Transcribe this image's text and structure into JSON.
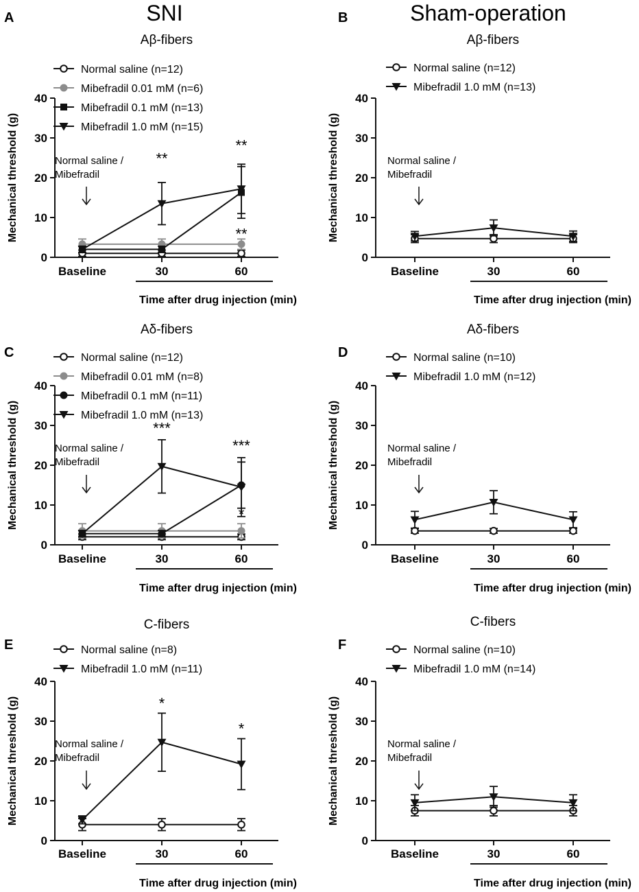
{
  "headers": {
    "left": "SNI",
    "right": "Sham-operation"
  },
  "shared": {
    "ylabel": "Mechanical threshold (g)",
    "xlabel": "Time after drug injection (min)",
    "annotation": "Normal saline /\nMibefradil",
    "ylim": [
      0,
      40
    ],
    "yticks": [
      0,
      10,
      20,
      30,
      40
    ]
  },
  "colors": {
    "black": "#111111",
    "grey": "#8c8c8c"
  },
  "chart_data": [
    {
      "panel": "A",
      "type": "line",
      "title": "Aβ-fibers",
      "categories": [
        "Baseline",
        "30",
        "60"
      ],
      "series": [
        {
          "name": "Normal saline (n=12)",
          "marker": "open-circle",
          "color": "#111111",
          "values": [
            1.0,
            1.0,
            1.0
          ],
          "errors": [
            0.8,
            0.8,
            0.8
          ]
        },
        {
          "name": "Mibefradil 0.01 mM (n=6)",
          "marker": "grey-circle",
          "color": "#8c8c8c",
          "values": [
            3.3,
            3.3,
            3.3
          ],
          "errors": [
            1.3,
            1.3,
            1.3
          ]
        },
        {
          "name": "Mibefradil 0.1 mM (n=13)",
          "marker": "square",
          "color": "#111111",
          "values": [
            2.0,
            2.0,
            16.3
          ],
          "errors": [
            0.8,
            0.8,
            6.5
          ]
        },
        {
          "name": "Mibefradil 1.0 mM (n=15)",
          "marker": "triangle-down",
          "color": "#111111",
          "values": [
            2.0,
            13.5,
            17.2
          ],
          "errors": [
            0.8,
            5.3,
            6.2
          ]
        }
      ],
      "significance": [
        {
          "x": "30",
          "y": 23.5,
          "text": "**"
        },
        {
          "x": "60",
          "y": 26.8,
          "text": "**"
        },
        {
          "x": "60",
          "y": 4.6,
          "text": "**"
        }
      ]
    },
    {
      "panel": "B",
      "type": "line",
      "title": "Aβ-fibers",
      "categories": [
        "Baseline",
        "30",
        "60"
      ],
      "series": [
        {
          "name": "Normal saline (n=12)",
          "marker": "open-circle",
          "color": "#111111",
          "values": [
            4.7,
            4.7,
            4.7
          ],
          "errors": [
            1.0,
            1.0,
            1.0
          ]
        },
        {
          "name": "Mibefradil 1.0 mM (n=13)",
          "marker": "triangle-down",
          "color": "#111111",
          "values": [
            5.3,
            7.4,
            5.3
          ],
          "errors": [
            1.2,
            2.0,
            1.3
          ]
        }
      ],
      "significance": []
    },
    {
      "panel": "C",
      "type": "line",
      "title": "Aδ-fibers",
      "categories": [
        "Baseline",
        "30",
        "60"
      ],
      "series": [
        {
          "name": "Normal saline (n=12)",
          "marker": "open-circle",
          "color": "#111111",
          "values": [
            2.0,
            2.0,
            2.0
          ],
          "errors": [
            0.7,
            0.7,
            0.7
          ]
        },
        {
          "name": "Mibefradil 0.01 mM  (n=8)",
          "marker": "grey-circle",
          "color": "#8c8c8c",
          "values": [
            3.5,
            3.5,
            3.5
          ],
          "errors": [
            1.8,
            1.8,
            1.8
          ]
        },
        {
          "name": "Mibefradil 0.1 mM (n=11)",
          "marker": "filled-circle",
          "color": "#111111",
          "values": [
            2.8,
            2.8,
            15.0
          ],
          "errors": [
            0.8,
            0.8,
            5.8
          ]
        },
        {
          "name": "Mibefradil 1.0 mM (n=13)",
          "marker": "triangle-down",
          "color": "#111111",
          "values": [
            2.8,
            19.7,
            14.5
          ],
          "errors": [
            0.8,
            6.7,
            7.4
          ]
        }
      ],
      "significance": [
        {
          "x": "30",
          "y": 28.0,
          "text": "***"
        },
        {
          "x": "60",
          "y": 23.6,
          "text": "***"
        },
        {
          "x": "60",
          "y": 6.4,
          "text": "*"
        }
      ]
    },
    {
      "panel": "D",
      "type": "line",
      "title": "Aδ-fibers",
      "categories": [
        "Baseline",
        "30",
        "60"
      ],
      "series": [
        {
          "name": "Normal saline (n=10)",
          "marker": "open-circle",
          "color": "#111111",
          "values": [
            3.5,
            3.5,
            3.5
          ],
          "errors": [
            0.6,
            0.6,
            0.6
          ]
        },
        {
          "name": "Mibefradil 1.0 mM (n=12)",
          "marker": "triangle-down",
          "color": "#111111",
          "values": [
            6.3,
            10.7,
            6.3
          ],
          "errors": [
            2.1,
            2.9,
            2.0
          ]
        }
      ],
      "significance": []
    },
    {
      "panel": "E",
      "type": "line",
      "title": "C-fibers",
      "categories": [
        "Baseline",
        "30",
        "60"
      ],
      "series": [
        {
          "name": "Normal saline (n=8)",
          "marker": "open-circle",
          "color": "#111111",
          "values": [
            4.0,
            4.0,
            4.0
          ],
          "errors": [
            1.5,
            1.5,
            1.5
          ]
        },
        {
          "name": "Mibefradil 1.0 mM (n=11)",
          "marker": "triangle-down",
          "color": "#111111",
          "values": [
            5.2,
            24.7,
            19.2
          ],
          "errors": [
            1.0,
            7.3,
            6.4
          ]
        }
      ],
      "significance": [
        {
          "x": "30",
          "y": 33.2,
          "text": "*"
        },
        {
          "x": "60",
          "y": 26.8,
          "text": "*"
        }
      ]
    },
    {
      "panel": "F",
      "type": "line",
      "title": "C-fibers",
      "categories": [
        "Baseline",
        "30",
        "60"
      ],
      "series": [
        {
          "name": "Normal saline (n=10)",
          "marker": "open-circle",
          "color": "#111111",
          "values": [
            7.5,
            7.5,
            7.5
          ],
          "errors": [
            1.3,
            1.3,
            1.3
          ]
        },
        {
          "name": "Mibefradil 1.0 mM (n=14)",
          "marker": "triangle-down",
          "color": "#111111",
          "values": [
            9.5,
            11.0,
            9.5
          ],
          "errors": [
            2.0,
            2.6,
            2.0
          ]
        }
      ],
      "significance": []
    }
  ]
}
